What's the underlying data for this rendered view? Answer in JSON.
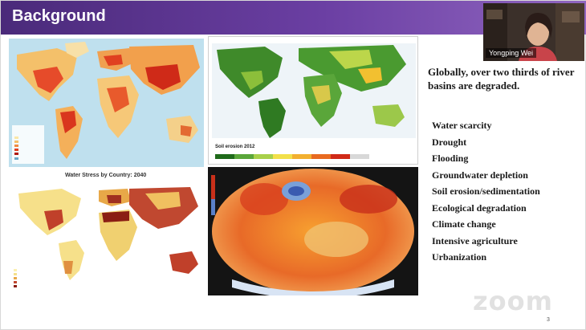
{
  "slide": {
    "title": "Background",
    "heading": "Globally, over two thirds of river basins are degraded.",
    "causes": [
      "Water scarcity",
      "Drought",
      "Flooding",
      "Groundwater depletion",
      "Soil erosion/sedimentation",
      "Ecological degradation",
      "Climate change",
      "Intensive agriculture",
      "Urbanization"
    ],
    "page_number": "3"
  },
  "figures": {
    "soil_caption": "Soil erosion 2012",
    "stress_title": "Water Stress by Country: 2040"
  },
  "video": {
    "participant_name": "Yongping Wei"
  },
  "branding": {
    "watermark": "zoom"
  },
  "colors": {
    "title_bar": "#5a3590",
    "text": "#1a1a1a"
  }
}
